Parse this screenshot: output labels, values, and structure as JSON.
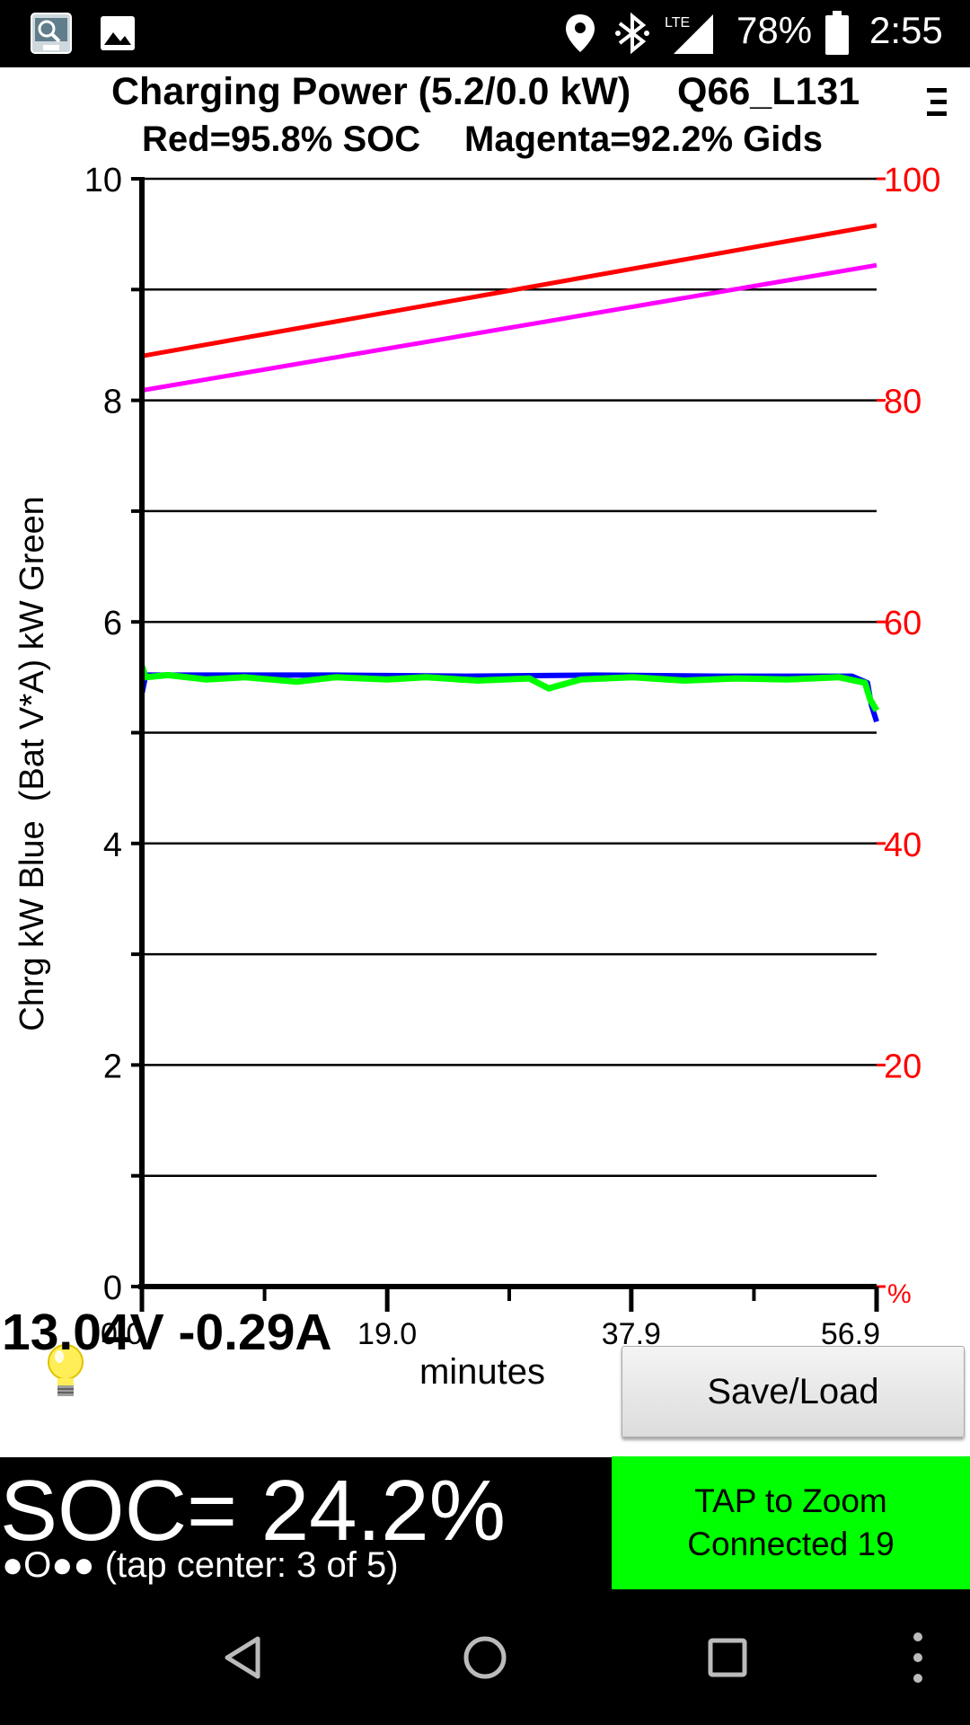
{
  "status_bar": {
    "icons_left": [
      "app-icon",
      "image-icon"
    ],
    "icons_right": [
      "location-icon",
      "bluetooth-icon",
      "lte-signal-icon",
      "battery-icon"
    ],
    "network": "LTE",
    "battery": "78%",
    "time": "2:55"
  },
  "header": {
    "line1_left": "Charging Power (5.2/0.0 kW)",
    "line1_right": "Q66_L131",
    "line2_left": "Red=95.8% SOC",
    "line2_right": "Magenta=92.2% Gids"
  },
  "chart_data": {
    "type": "line",
    "title": "",
    "xlabel": "minutes",
    "ylabel": "Chrg kW Blue  (Bat V*A) kW Green",
    "x_ticks": [
      "0.0",
      "19.0",
      "37.9",
      "56.9"
    ],
    "xlim": [
      0,
      56.9
    ],
    "y_left_ticks": [
      "0",
      "2",
      "4",
      "6",
      "8",
      "10"
    ],
    "ylim_left": [
      0,
      10
    ],
    "y_right_ticks": [
      "%",
      "20",
      "40",
      "60",
      "80",
      "100"
    ],
    "ylim_right": [
      0,
      100
    ],
    "grid": true,
    "series": [
      {
        "color": "#ff0000",
        "axis": "right",
        "x": [
          0,
          56.9
        ],
        "y": [
          84.0,
          95.8
        ]
      },
      {
        "color": "#ff00ff",
        "axis": "right",
        "x": [
          0,
          56.9
        ],
        "y": [
          80.9,
          92.2
        ]
      },
      {
        "color": "#0000ff",
        "axis": "left",
        "x": [
          0,
          0.3,
          5,
          15,
          25,
          35,
          45,
          55,
          56.2,
          56.5,
          56.9
        ],
        "y": [
          5.35,
          5.52,
          5.52,
          5.52,
          5.51,
          5.52,
          5.51,
          5.51,
          5.45,
          5.25,
          5.1
        ]
      },
      {
        "color": "#00ff00",
        "axis": "left",
        "x": [
          0,
          0.3,
          2,
          5,
          8,
          12,
          15,
          19,
          22,
          26,
          30,
          31.5,
          34,
          38,
          42,
          46,
          50,
          54,
          56.0,
          56.4,
          56.9
        ],
        "y": [
          5.6,
          5.5,
          5.52,
          5.48,
          5.5,
          5.46,
          5.5,
          5.48,
          5.5,
          5.47,
          5.49,
          5.4,
          5.48,
          5.5,
          5.47,
          5.49,
          5.48,
          5.5,
          5.45,
          5.3,
          5.2
        ]
      }
    ]
  },
  "readout": {
    "voltage_current": "13.04V -0.29A",
    "bulb_icon": "lightbulb-icon"
  },
  "save_button": {
    "label": "Save/Load"
  },
  "soc": {
    "main": "SOC= 24.2%",
    "dots": "●O●●",
    "sub": " (tap center: 3 of 5)"
  },
  "zoom": {
    "line1": "TAP to Zoom",
    "line2": "Connected 19",
    "color": "#00ff00"
  },
  "colors": {
    "right_axis": "#ff0000",
    "grid": "#000000"
  }
}
